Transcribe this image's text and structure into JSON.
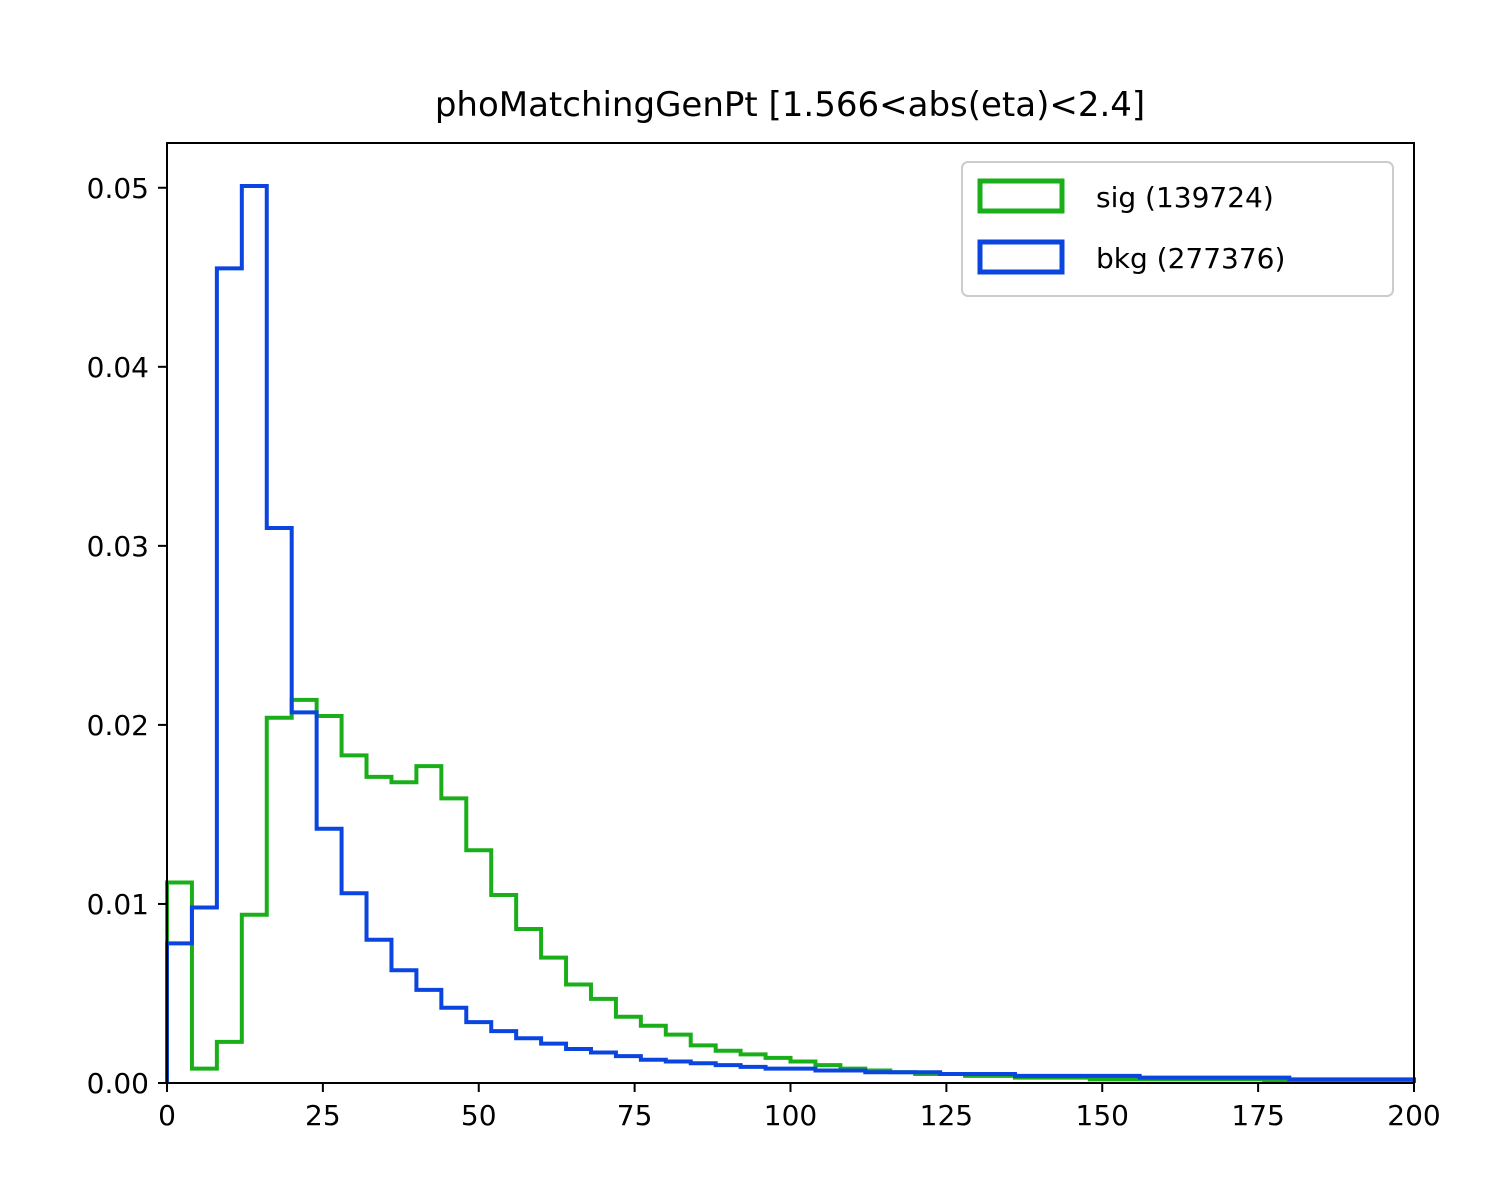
{
  "chart_data": {
    "type": "histogram",
    "title": "phoMatchingGenPt [1.566<abs(eta)<2.4]",
    "xlabel": "",
    "ylabel": "",
    "xlim": [
      0,
      200
    ],
    "ylim": [
      0,
      0.0525
    ],
    "legend_position": "top-right",
    "xticks": [
      "0",
      "25",
      "50",
      "75",
      "100",
      "125",
      "150",
      "175",
      "200"
    ],
    "yticks": [
      "0.00",
      "0.01",
      "0.02",
      "0.03",
      "0.04",
      "0.05"
    ],
    "bin_edges": [
      0,
      4,
      8,
      12,
      16,
      20,
      24,
      28,
      32,
      36,
      40,
      44,
      48,
      52,
      56,
      60,
      64,
      68,
      72,
      76,
      80,
      84,
      88,
      92,
      96,
      100,
      104,
      108,
      112,
      116,
      120,
      124,
      128,
      132,
      136,
      140,
      144,
      148,
      152,
      156,
      160,
      164,
      168,
      172,
      176,
      180,
      184,
      188,
      192,
      196,
      200
    ],
    "series": [
      {
        "name": "sig (139724)",
        "color": "#1aaf1a",
        "values": [
          0.0112,
          0.0008,
          0.0023,
          0.0094,
          0.0204,
          0.0214,
          0.0205,
          0.0183,
          0.0171,
          0.0168,
          0.0177,
          0.0159,
          0.013,
          0.0105,
          0.0086,
          0.007,
          0.0055,
          0.0047,
          0.0037,
          0.0032,
          0.0027,
          0.0021,
          0.0018,
          0.0016,
          0.0014,
          0.0012,
          0.001,
          0.0008,
          0.0007,
          0.0006,
          0.0005,
          0.0005,
          0.0004,
          0.0004,
          0.0003,
          0.0003,
          0.0003,
          0.0002,
          0.0002,
          0.0002,
          0.0002,
          0.0002,
          0.0002,
          0.0002,
          0.0001,
          0.0001,
          0.0001,
          0.0001,
          0.0001,
          0.0001
        ]
      },
      {
        "name": "bkg (277376)",
        "color": "#0a45e0",
        "values": [
          0.0078,
          0.0098,
          0.0455,
          0.0501,
          0.031,
          0.0207,
          0.0142,
          0.0106,
          0.008,
          0.0063,
          0.0052,
          0.0042,
          0.0034,
          0.0029,
          0.0025,
          0.0022,
          0.0019,
          0.0017,
          0.0015,
          0.0013,
          0.0012,
          0.0011,
          0.001,
          0.0009,
          0.0008,
          0.0008,
          0.0007,
          0.0007,
          0.0006,
          0.0006,
          0.0006,
          0.0005,
          0.0005,
          0.0005,
          0.0004,
          0.0004,
          0.0004,
          0.0004,
          0.0004,
          0.0003,
          0.0003,
          0.0003,
          0.0003,
          0.0003,
          0.0003,
          0.0002,
          0.0002,
          0.0002,
          0.0002,
          0.0002
        ]
      }
    ]
  }
}
